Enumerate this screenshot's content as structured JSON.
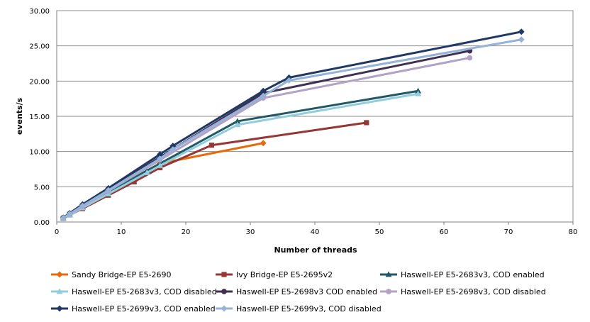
{
  "chart_data": {
    "type": "line",
    "title": "",
    "xlabel": "Number of threads",
    "ylabel": "events/s",
    "xlim": [
      0,
      80
    ],
    "ylim": [
      0,
      30
    ],
    "x_ticks": [
      "0",
      "10",
      "20",
      "30",
      "40",
      "50",
      "60",
      "70",
      "80"
    ],
    "y_ticks": [
      "0.00",
      "5.00",
      "10.00",
      "15.00",
      "20.00",
      "25.00",
      "30.00"
    ],
    "grid": "horizontal",
    "legend_position": "bottom",
    "series": [
      {
        "name": "Sandy Bridge-EP E5-2690",
        "color": "#E46C0A",
        "marker": "diamond",
        "x": [
          1,
          2,
          4,
          8,
          16,
          32
        ],
        "y": [
          0.6,
          1.15,
          2.2,
          4.2,
          8.3,
          11.2
        ]
      },
      {
        "name": "Ivy Bridge-EP E5-2695v2",
        "color": "#953735",
        "marker": "square",
        "x": [
          1,
          2,
          4,
          8,
          12,
          16,
          24,
          48
        ],
        "y": [
          0.5,
          1.0,
          1.9,
          3.8,
          5.7,
          7.7,
          10.9,
          14.1
        ]
      },
      {
        "name": "Haswell-EP E5-2683v3, COD enabled",
        "color": "#215967",
        "marker": "triangle",
        "x": [
          1,
          2,
          4,
          8,
          14,
          16,
          28,
          56
        ],
        "y": [
          0.55,
          1.1,
          2.1,
          4.2,
          7.3,
          8.3,
          14.3,
          18.6
        ]
      },
      {
        "name": "Haswell-EP E5-2683v3, COD disabled",
        "color": "#93CDDD",
        "marker": "triangle",
        "x": [
          1,
          2,
          4,
          8,
          14,
          16,
          28,
          56
        ],
        "y": [
          0.5,
          1.0,
          2.0,
          4.0,
          7.0,
          8.0,
          13.8,
          18.2
        ]
      },
      {
        "name": "Haswell-EP E5-2698v3 COD enabled",
        "color": "#403152",
        "marker": "circle",
        "x": [
          1,
          2,
          4,
          8,
          16,
          32,
          64
        ],
        "y": [
          0.6,
          1.2,
          2.4,
          4.6,
          9.2,
          18.3,
          24.3
        ]
      },
      {
        "name": "Haswell-EP E5-2698v3, COD disabled",
        "color": "#B3A2C7",
        "marker": "circle",
        "x": [
          1,
          2,
          4,
          8,
          16,
          32,
          64
        ],
        "y": [
          0.55,
          1.1,
          2.2,
          4.4,
          8.8,
          17.6,
          23.3
        ]
      },
      {
        "name": "Haswell-EP E5-2699v3, COD enabled",
        "color": "#1F3864",
        "marker": "diamond",
        "x": [
          1,
          2,
          4,
          8,
          16,
          18,
          32,
          36,
          72
        ],
        "y": [
          0.6,
          1.25,
          2.5,
          4.8,
          9.6,
          10.8,
          18.6,
          20.5,
          27.0
        ]
      },
      {
        "name": "Haswell-EP E5-2699v3, COD disabled",
        "color": "#95B3D7",
        "marker": "diamond",
        "x": [
          1,
          2,
          4,
          8,
          16,
          18,
          32,
          36,
          72
        ],
        "y": [
          0.55,
          1.15,
          2.3,
          4.5,
          9.0,
          10.3,
          17.9,
          20.1,
          25.9
        ]
      }
    ]
  }
}
